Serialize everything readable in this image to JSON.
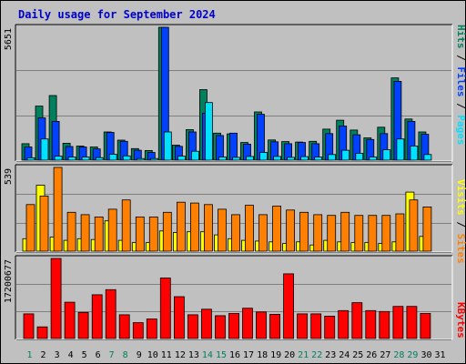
{
  "title": "Daily usage for September 2024",
  "panel_labels": {
    "hits_max": "5651",
    "visits_max": "539",
    "kbytes_max": "17200677",
    "legend_hits": [
      "Pages",
      "Files",
      "Hits"
    ],
    "legend_visits": [
      "Sites",
      "Visits"
    ],
    "legend_kbytes": "KBytes"
  },
  "colors": {
    "background": "#c0c0c0",
    "hits": "#00805c",
    "files": "#0040ff",
    "pages": "#00e0ff",
    "visits": "#ffff00",
    "sites": "#ff8000",
    "kbytes": "#ff0000",
    "title": "#0000cc",
    "day_default": "#0000cc",
    "day_weekend": "#00805c"
  },
  "chart_data": [
    {
      "type": "bar",
      "name": "hits-files-pages",
      "categories": [
        "1",
        "2",
        "3",
        "4",
        "5",
        "6",
        "7",
        "8",
        "9",
        "10",
        "11",
        "12",
        "13",
        "14",
        "15",
        "16",
        "17",
        "18",
        "19",
        "20",
        "21",
        "22",
        "23",
        "24",
        "25",
        "26",
        "27",
        "28",
        "29",
        "30",
        "31"
      ],
      "ylim": [
        0,
        5651
      ],
      "series": [
        {
          "name": "Hits",
          "values": [
            700,
            2300,
            2750,
            720,
            600,
            560,
            1200,
            850,
            490,
            410,
            5651,
            640,
            1300,
            3000,
            1150,
            1120,
            750,
            2050,
            860,
            790,
            770,
            800,
            1320,
            1700,
            1280,
            950,
            1400,
            3500,
            1750,
            1200,
            0
          ]
        },
        {
          "name": "Files",
          "values": [
            560,
            1800,
            1650,
            580,
            560,
            480,
            1180,
            800,
            420,
            330,
            5651,
            590,
            1200,
            2000,
            1050,
            1150,
            680,
            1950,
            780,
            700,
            750,
            700,
            1130,
            1450,
            1080,
            880,
            1130,
            3350,
            1650,
            1100,
            0
          ]
        },
        {
          "name": "Pages",
          "values": [
            100,
            900,
            170,
            130,
            130,
            110,
            250,
            180,
            70,
            70,
            1200,
            170,
            380,
            2450,
            130,
            120,
            160,
            330,
            160,
            120,
            150,
            130,
            240,
            420,
            290,
            130,
            440,
            900,
            600,
            240,
            0
          ]
        }
      ]
    },
    {
      "type": "bar",
      "name": "visits-sites",
      "categories": [
        "1",
        "2",
        "3",
        "4",
        "5",
        "6",
        "7",
        "8",
        "9",
        "10",
        "11",
        "12",
        "13",
        "14",
        "15",
        "16",
        "17",
        "18",
        "19",
        "20",
        "21",
        "22",
        "23",
        "24",
        "25",
        "26",
        "27",
        "28",
        "29",
        "30",
        "31"
      ],
      "ylim": [
        0,
        539
      ],
      "series": [
        {
          "name": "Visits",
          "values": [
            80,
            425,
            90,
            70,
            80,
            75,
            195,
            70,
            55,
            55,
            130,
            120,
            125,
            125,
            105,
            80,
            70,
            65,
            60,
            50,
            60,
            40,
            70,
            60,
            55,
            55,
            50,
            60,
            380,
            95,
            0
          ]
        },
        {
          "name": "Sites",
          "values": [
            300,
            355,
            539,
            250,
            235,
            220,
            270,
            330,
            220,
            220,
            250,
            315,
            310,
            300,
            270,
            235,
            295,
            235,
            290,
            265,
            250,
            235,
            230,
            250,
            230,
            230,
            230,
            240,
            330,
            285,
            0
          ]
        }
      ]
    },
    {
      "type": "bar",
      "name": "kbytes",
      "categories": [
        "1",
        "2",
        "3",
        "4",
        "5",
        "6",
        "7",
        "8",
        "9",
        "10",
        "11",
        "12",
        "13",
        "14",
        "15",
        "16",
        "17",
        "18",
        "19",
        "20",
        "21",
        "22",
        "23",
        "24",
        "25",
        "26",
        "27",
        "28",
        "29",
        "30",
        "31"
      ],
      "ylim": [
        0,
        17200677
      ],
      "series": [
        {
          "name": "KBytes",
          "values": [
            5300000,
            2500000,
            17200677,
            7800000,
            5600000,
            9400000,
            10500000,
            5100000,
            3400000,
            4200000,
            13000000,
            9000000,
            5100000,
            6300000,
            4900000,
            5400000,
            6500000,
            5700000,
            5200000,
            13900000,
            5300000,
            5300000,
            4800000,
            6000000,
            7700000,
            6000000,
            5800000,
            6900000,
            6900000,
            5400000,
            0
          ]
        }
      ]
    }
  ]
}
